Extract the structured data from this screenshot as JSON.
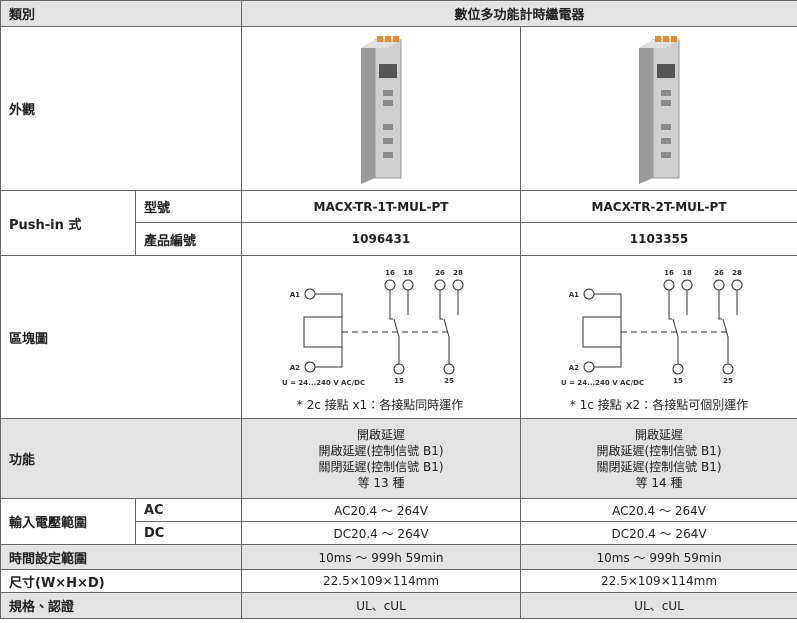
{
  "header": {
    "category": "類別",
    "product": "數位多功能計時繼電器"
  },
  "appearance": {
    "label": "外觀"
  },
  "push_in": {
    "label": "Push-in 式",
    "model": {
      "label": "型號",
      "values": [
        "MACX-TR-1T-MUL-PT",
        "MACX-TR-2T-MUL-PT"
      ]
    },
    "part_number": {
      "label": "產品編號",
      "values": [
        "1096431",
        "1103355"
      ]
    }
  },
  "block_diagram": {
    "label": "區塊圖",
    "diagrams": [
      {
        "a1": "A1",
        "a2": "A2",
        "top": [
          "16",
          "18",
          "26",
          "28"
        ],
        "bottom": [
          "15",
          "25"
        ],
        "voltage": "U = 24...240 V AC/DC",
        "note": "* 2c 接點 x1：各接點同時運作"
      },
      {
        "a1": "A1",
        "a2": "A2",
        "top": [
          "16",
          "18",
          "26",
          "28"
        ],
        "bottom": [
          "15",
          "25"
        ],
        "voltage": "U = 24...240 V AC/DC",
        "note": "* 1c 接點 x2：各接點可個別運作"
      }
    ]
  },
  "function": {
    "label": "功能",
    "values": [
      [
        "開啟延遲",
        "開啟延遲(控制信號 B1)",
        "關閉延遲(控制信號 B1)",
        "等 13 種"
      ],
      [
        "開啟延遲",
        "開啟延遲(控制信號 B1)",
        "關閉延遲(控制信號 B1)",
        "等 14 種"
      ]
    ]
  },
  "input_voltage": {
    "label": "輸入電壓範圍",
    "ac": {
      "label": "AC",
      "values": [
        "AC20.4 ～ 264V",
        "AC20.4 ～ 264V"
      ]
    },
    "dc": {
      "label": "DC",
      "values": [
        "DC20.4 ～ 264V",
        "DC20.4 ～ 264V"
      ]
    }
  },
  "time_range": {
    "label": "時間設定範圍",
    "values": [
      "10ms ～ 999h 59min",
      "10ms ～ 999h 59min"
    ]
  },
  "dimensions": {
    "label": "尺寸(W×H×D)",
    "values": [
      "22.5×109×114mm",
      "22.5×109×114mm"
    ]
  },
  "certification": {
    "label": "規格、認證",
    "values": [
      "UL、cUL",
      "UL、cUL"
    ]
  }
}
